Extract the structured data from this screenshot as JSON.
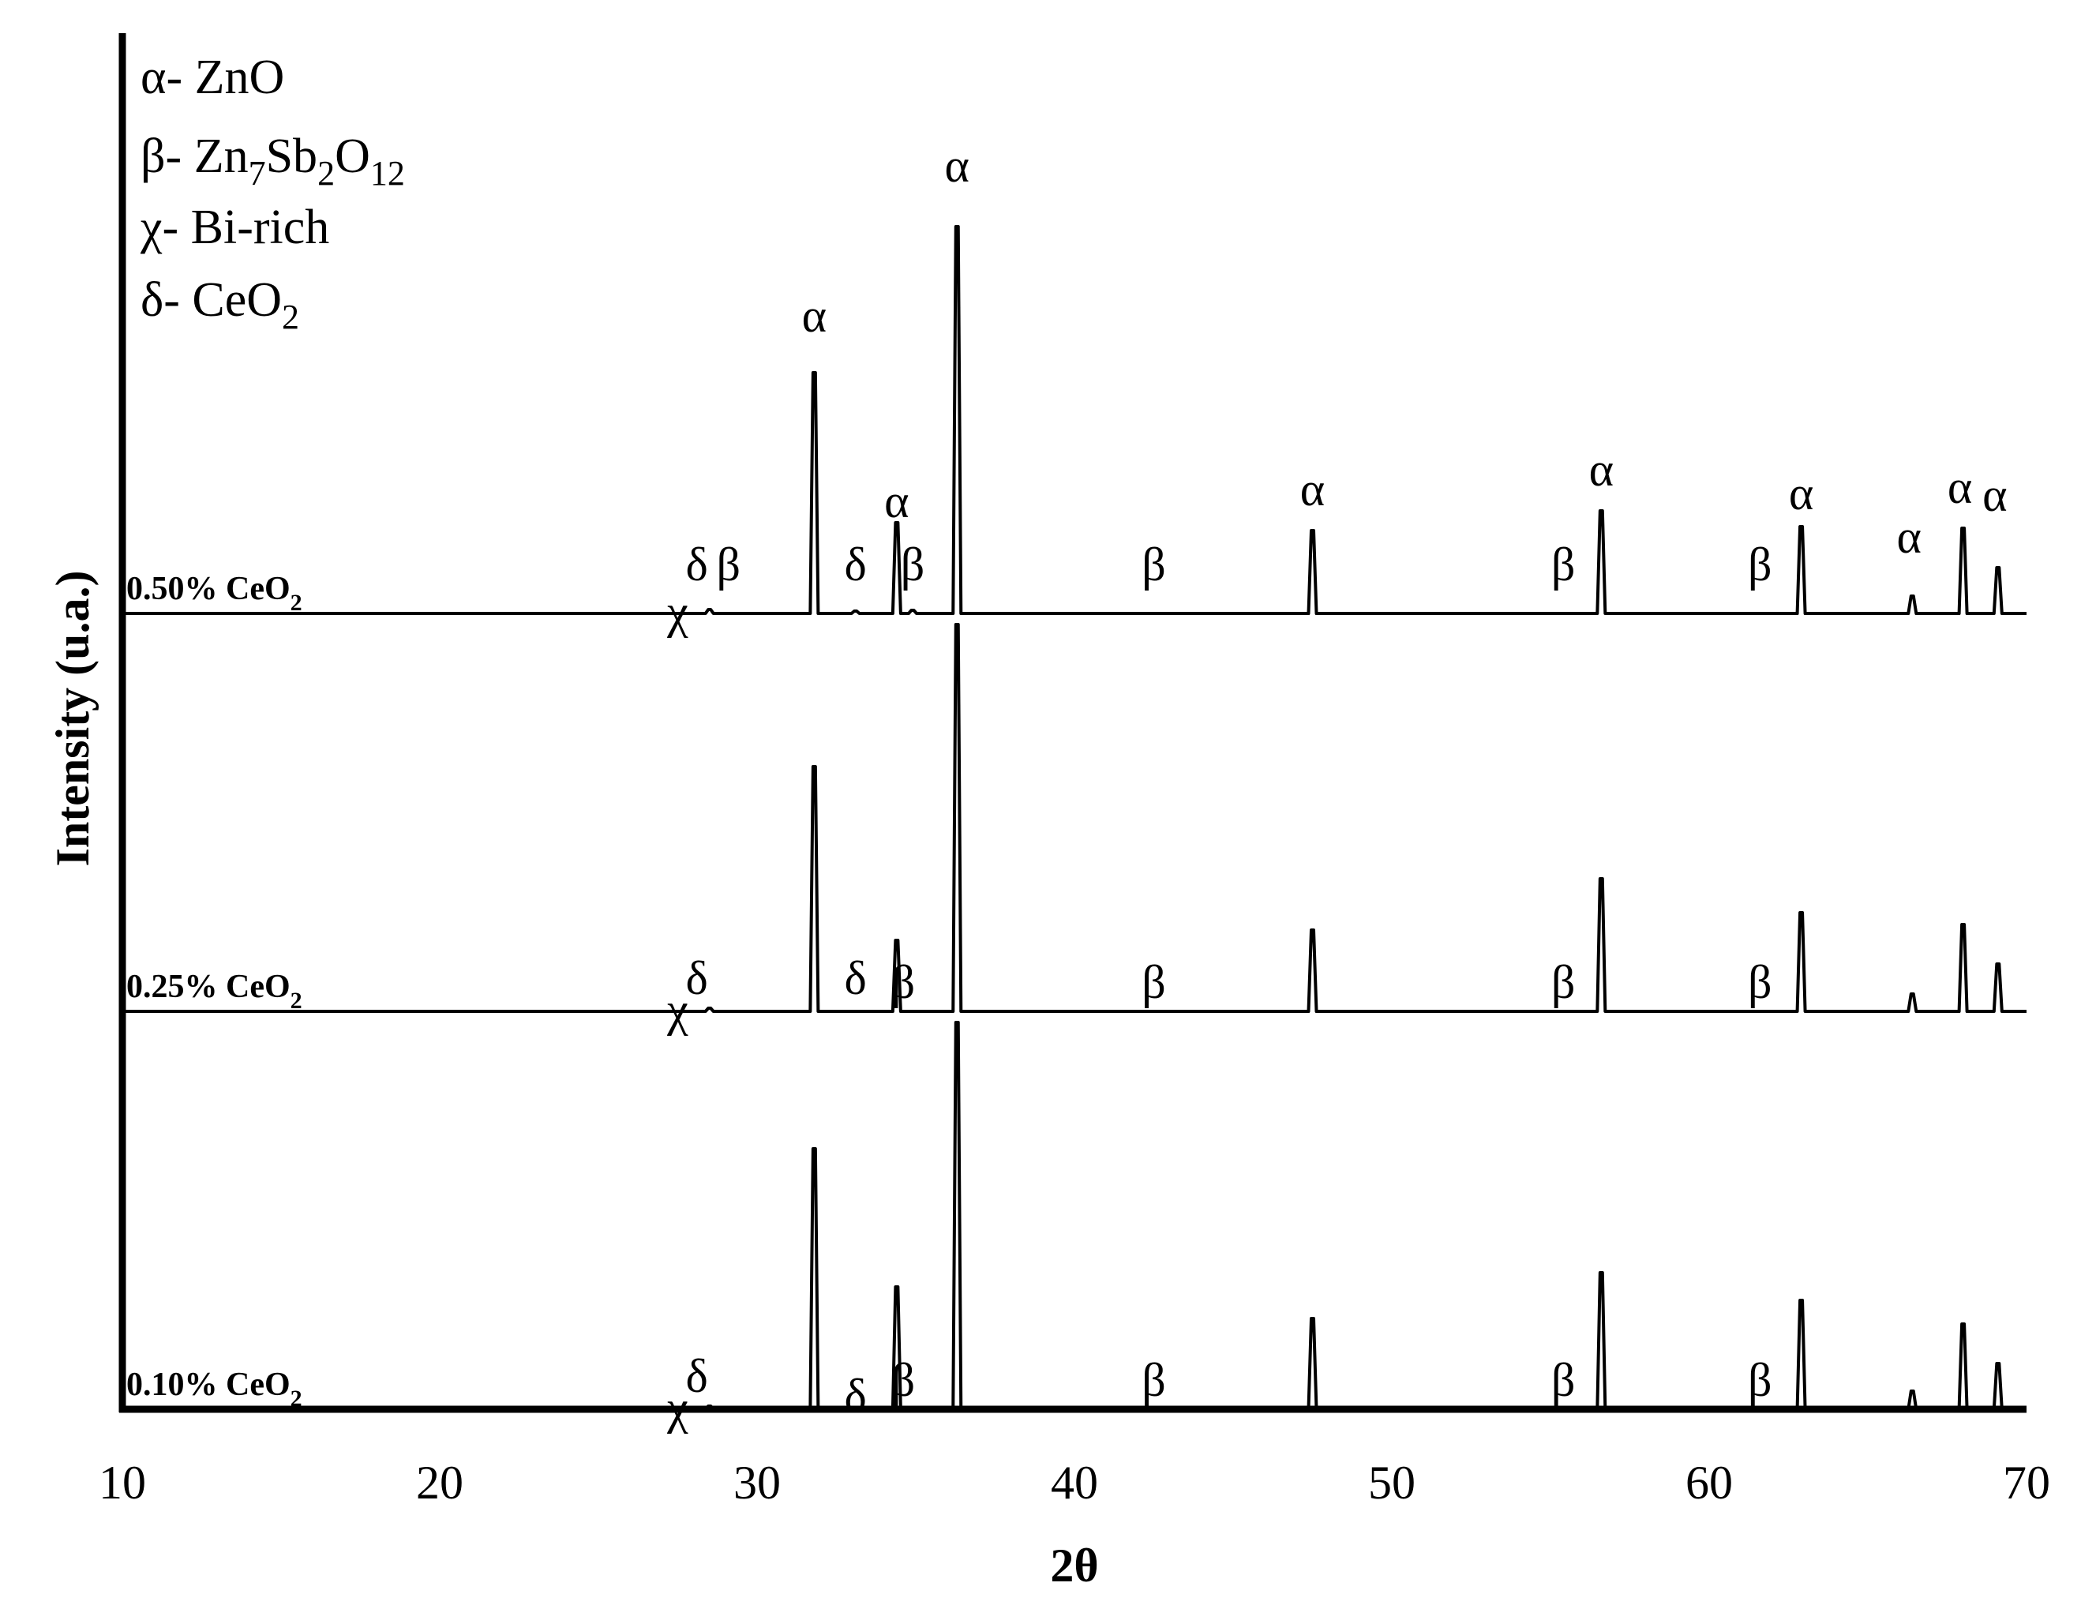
{
  "chart_data": {
    "type": "line",
    "xlabel": "2θ",
    "ylabel": "Intensity (u.a.)",
    "xlim": [
      10,
      70
    ],
    "x_ticks": [
      "10",
      "20",
      "30",
      "40",
      "50",
      "60",
      "70"
    ],
    "legend": {
      "placement": "top-left",
      "entries": [
        {
          "symbol": "α",
          "text": "- ZnO"
        },
        {
          "symbol": "β",
          "text": "- Zn",
          "sub1": "7",
          "mid": "Sb",
          "sub2": "2",
          "tail": "O",
          "sub3": "12"
        },
        {
          "symbol": "χ",
          "text": "- Bi-rich"
        },
        {
          "symbol": "δ",
          "text": "- CeO",
          "sub1": "2"
        }
      ]
    },
    "series": [
      {
        "name": "0.10% CeO",
        "name_sub": "2",
        "peaks": [
          {
            "x": 28.5,
            "h": 0.004
          },
          {
            "x": 31.8,
            "h": 0.33
          },
          {
            "x": 34.4,
            "h": 0.155
          },
          {
            "x": 36.3,
            "h": 0.49
          },
          {
            "x": 47.5,
            "h": 0.115
          },
          {
            "x": 56.6,
            "h": 0.173
          },
          {
            "x": 62.9,
            "h": 0.138
          },
          {
            "x": 66.4,
            "h": 0.023
          },
          {
            "x": 68.0,
            "h": 0.108
          },
          {
            "x": 69.1,
            "h": 0.058
          }
        ],
        "labels": [
          {
            "t": "χ",
            "x": 27.5,
            "y": -0.03
          },
          {
            "t": "δ",
            "x": 28.1,
            "y": 0.01
          },
          {
            "t": "δ",
            "x": 33.1,
            "y": -0.015
          },
          {
            "t": "β",
            "x": 34.6,
            "y": 0.005
          },
          {
            "t": "β",
            "x": 42.5,
            "y": 0.005
          },
          {
            "t": "β",
            "x": 55.4,
            "y": 0.005
          },
          {
            "t": "β",
            "x": 61.6,
            "y": 0.005
          }
        ]
      },
      {
        "name": "0.25% CeO",
        "name_sub": "2",
        "peaks": [
          {
            "x": 28.5,
            "h": 0.004
          },
          {
            "x": 31.8,
            "h": 0.31
          },
          {
            "x": 34.4,
            "h": 0.09
          },
          {
            "x": 36.3,
            "h": 0.49
          },
          {
            "x": 47.5,
            "h": 0.103
          },
          {
            "x": 56.6,
            "h": 0.168
          },
          {
            "x": 62.9,
            "h": 0.125
          },
          {
            "x": 66.4,
            "h": 0.022
          },
          {
            "x": 68.0,
            "h": 0.11
          },
          {
            "x": 69.1,
            "h": 0.06
          }
        ],
        "labels": [
          {
            "t": "χ",
            "x": 27.5,
            "y": -0.03
          },
          {
            "t": "δ",
            "x": 28.1,
            "y": 0.01
          },
          {
            "t": "δ",
            "x": 33.1,
            "y": 0.01
          },
          {
            "t": "β",
            "x": 34.6,
            "y": 0.005
          },
          {
            "t": "β",
            "x": 42.5,
            "y": 0.005
          },
          {
            "t": "β",
            "x": 55.4,
            "y": 0.005
          },
          {
            "t": "β",
            "x": 61.6,
            "y": 0.005
          }
        ]
      },
      {
        "name": "0.50% CeO",
        "name_sub": "2",
        "peaks": [
          {
            "x": 28.5,
            "h": 0.005
          },
          {
            "x": 31.8,
            "h": 0.305
          },
          {
            "x": 33.1,
            "h": 0.003
          },
          {
            "x": 34.4,
            "h": 0.115
          },
          {
            "x": 34.9,
            "h": 0.004
          },
          {
            "x": 36.3,
            "h": 0.49
          },
          {
            "x": 47.5,
            "h": 0.105
          },
          {
            "x": 56.6,
            "h": 0.13
          },
          {
            "x": 62.9,
            "h": 0.11
          },
          {
            "x": 66.4,
            "h": 0.022
          },
          {
            "x": 68.0,
            "h": 0.108
          },
          {
            "x": 69.1,
            "h": 0.058
          }
        ],
        "labels": [
          {
            "t": "χ",
            "x": 27.5,
            "y": -0.03
          },
          {
            "t": "δ",
            "x": 28.1,
            "y": 0.03
          },
          {
            "t": "β",
            "x": 29.1,
            "y": 0.03
          },
          {
            "t": "α",
            "x": 31.8,
            "y": 0.345
          },
          {
            "t": "δ",
            "x": 33.1,
            "y": 0.03
          },
          {
            "t": "α",
            "x": 34.4,
            "y": 0.11
          },
          {
            "t": "β",
            "x": 34.9,
            "y": 0.03
          },
          {
            "t": "α",
            "x": 36.3,
            "y": 0.535
          },
          {
            "t": "β",
            "x": 42.5,
            "y": 0.03
          },
          {
            "t": "α",
            "x": 47.5,
            "y": 0.125
          },
          {
            "t": "β",
            "x": 55.4,
            "y": 0.03
          },
          {
            "t": "α",
            "x": 56.6,
            "y": 0.15
          },
          {
            "t": "β",
            "x": 61.6,
            "y": 0.03
          },
          {
            "t": "α",
            "x": 62.9,
            "y": 0.12
          },
          {
            "t": "α",
            "x": 66.3,
            "y": 0.065
          },
          {
            "t": "α",
            "x": 67.9,
            "y": 0.128
          },
          {
            "t": "α",
            "x": 69.0,
            "y": 0.118
          }
        ]
      }
    ]
  }
}
